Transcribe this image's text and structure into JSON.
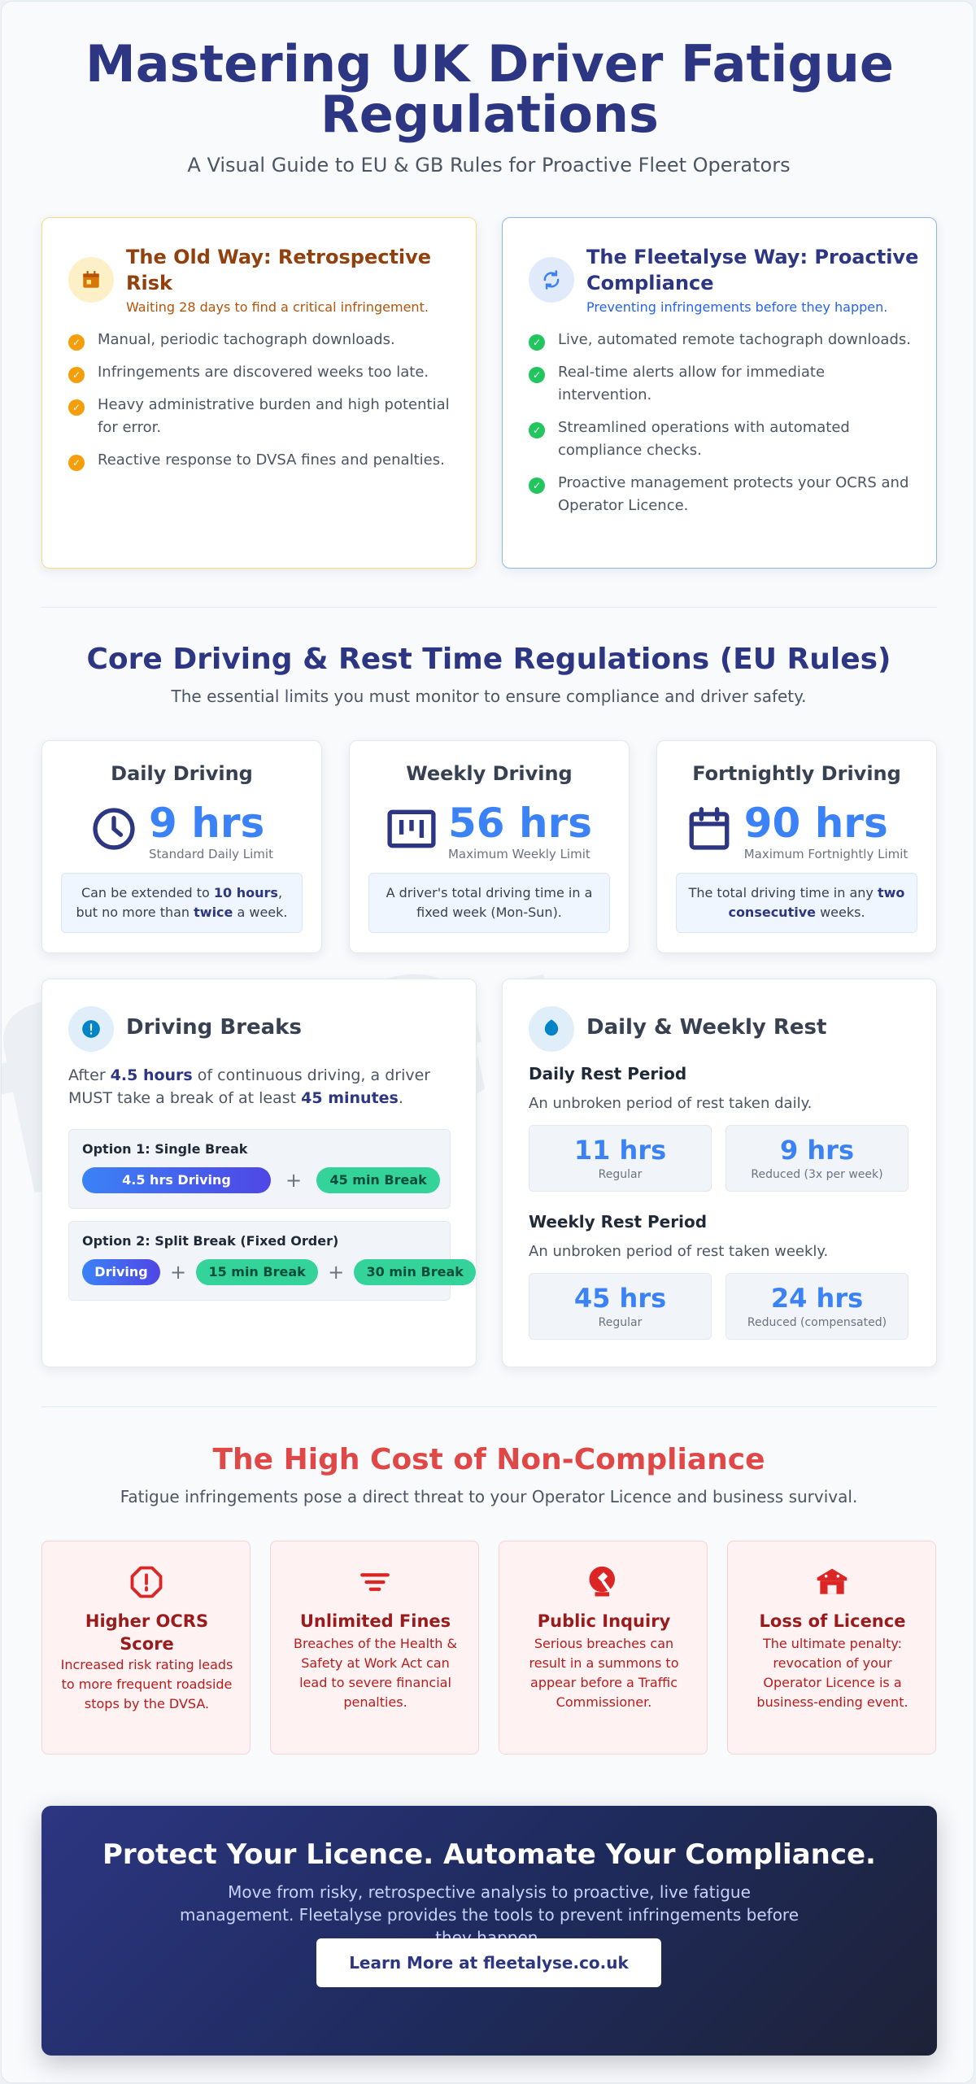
{
  "header": {
    "title": "Mastering UK Driver Fatigue Regulations",
    "subtitle": "A Visual Guide to EU & GB Rules for Proactive Fleet Operators"
  },
  "comparison": {
    "old": {
      "title": "The Old Way: Retrospective Risk",
      "tagline": "Waiting 28 days to find a critical infringement.",
      "icon": "calendar-icon",
      "items": [
        "Manual, periodic tachograph downloads.",
        "Infringements are discovered weeks too late.",
        "Heavy administrative burden and high potential for error.",
        "Reactive response to DVSA fines and penalties."
      ]
    },
    "new": {
      "title": "The Fleetalyse Way: Proactive Compliance",
      "tagline": "Preventing infringements before they happen.",
      "icon": "sync-icon",
      "items": [
        "Live, automated remote tachograph downloads.",
        "Real-time alerts allow for immediate intervention.",
        "Streamlined operations with automated compliance checks.",
        "Proactive management protects your OCRS and Operator Licence."
      ]
    }
  },
  "core": {
    "title": "Core Driving & Rest Time Regulations (EU Rules)",
    "subtitle": "The essential limits you must monitor to ensure compliance and driver safety.",
    "stats": [
      {
        "heading": "Daily Driving",
        "value": "9 hrs",
        "caption": "Standard Daily Limit",
        "icon": "clock-icon",
        "note_parts": [
          "Can be extended to ",
          "10 hours",
          ", but no more than ",
          "twice",
          " a week."
        ]
      },
      {
        "heading": "Weekly Driving",
        "value": "56 hrs",
        "caption": "Maximum Weekly Limit",
        "icon": "chart-box-icon",
        "note_parts": [
          "A driver's total driving time in a fixed week (Mon-Sun)."
        ]
      },
      {
        "heading": "Fortnightly Driving",
        "value": "90 hrs",
        "caption": "Maximum Fortnightly Limit",
        "icon": "calendar-outline-icon",
        "note_parts": [
          "The total driving time in any ",
          "two consecutive",
          " weeks."
        ]
      }
    ]
  },
  "breaks": {
    "title": "Driving Breaks",
    "icon": "info-icon",
    "text_parts": [
      "After ",
      "4.5 hours",
      " of continuous driving, a driver MUST take a break of at least ",
      "45 minutes",
      "."
    ],
    "option1": {
      "label": "Option 1: Single Break",
      "drive": "4.5 hrs Driving",
      "plus": "+",
      "break": "45 min Break"
    },
    "option2": {
      "label": "Option 2: Split Break (Fixed Order)",
      "drive": "Driving",
      "plus": "+",
      "break1": "15 min Break",
      "break2": "30 min Break"
    }
  },
  "rest": {
    "title": "Daily & Weekly Rest",
    "icon": "moon-icon",
    "daily": {
      "heading": "Daily Rest Period",
      "text": "An unbroken period of rest taken daily.",
      "regular_value": "11 hrs",
      "regular_label": "Regular",
      "reduced_value": "9 hrs",
      "reduced_label": "Reduced (3x per week)"
    },
    "weekly": {
      "heading": "Weekly Rest Period",
      "text": "An unbroken period of rest taken weekly.",
      "regular_value": "45 hrs",
      "regular_label": "Regular",
      "reduced_value": "24 hrs",
      "reduced_label": "Reduced (compensated)"
    }
  },
  "costs": {
    "title": "The High Cost of Non-Compliance",
    "subtitle": "Fatigue infringements pose a direct threat to your Operator Licence and business survival.",
    "items": [
      {
        "title": "Higher OCRS Score",
        "text": "Increased risk rating leads to more frequent roadside stops by the DVSA.",
        "icon": "warning-shield-icon"
      },
      {
        "title": "Unlimited Fines",
        "text": "Breaches of the Health & Safety at Work Act can lead to severe financial penalties.",
        "icon": "filter-icon"
      },
      {
        "title": "Public Inquiry",
        "text": "Serious breaches can result in a summons to appear before a Traffic Commissioner.",
        "icon": "gavel-icon"
      },
      {
        "title": "Loss of Licence",
        "text": "The ultimate penalty: revocation of your Operator Licence is a business-ending event.",
        "icon": "shop-closed-icon"
      }
    ]
  },
  "cta": {
    "title": "Protect Your Licence. Automate Your Compliance.",
    "text": "Move from risky, retrospective analysis to proactive, live fatigue management. Fleetalyse provides the tools to prevent infringements before they happen.",
    "button": "Learn More at fleetalyse.co.uk"
  },
  "colors": {
    "navy": "#2c3682",
    "accent_blue": "#3b82f6",
    "old_accent": "#f59e0b",
    "new_check": "#22c55e",
    "danger": "#dc2626"
  }
}
